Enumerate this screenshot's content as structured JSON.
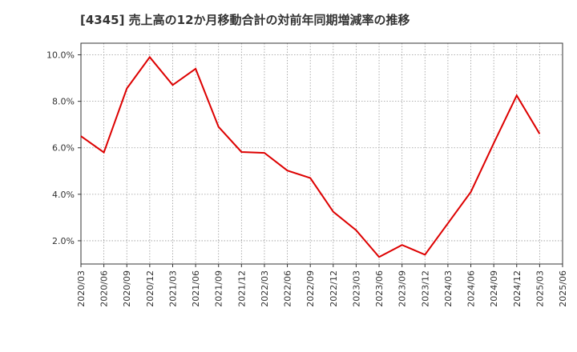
{
  "chart_data": {
    "type": "line",
    "title": "[4345]  売上高の12か月移動合計の対前年同期増減率の推移",
    "xlabel": "",
    "ylabel": "",
    "x": [
      "2020/03",
      "2020/06",
      "2020/09",
      "2020/12",
      "2021/03",
      "2021/06",
      "2021/09",
      "2021/12",
      "2022/03",
      "2022/06",
      "2022/09",
      "2022/12",
      "2023/03",
      "2023/06",
      "2023/09",
      "2023/12",
      "2024/03",
      "2024/06",
      "2024/09",
      "2024/12",
      "2025/03",
      "2025/06"
    ],
    "y_tick_values": [
      2.0,
      4.0,
      6.0,
      8.0,
      10.0
    ],
    "y_tick_labels": [
      "2.0%",
      "4.0%",
      "6.0%",
      "8.0%",
      "10.0%"
    ],
    "ylim": [
      1.0,
      10.5
    ],
    "grid": true,
    "series": [
      {
        "name": "対前年同期増減率",
        "color": "#dd0000",
        "values": [
          6.5,
          5.8,
          8.55,
          9.9,
          8.7,
          9.4,
          6.9,
          5.82,
          5.78,
          5.02,
          4.7,
          3.25,
          2.45,
          1.3,
          1.82,
          1.4,
          2.75,
          4.1,
          6.2,
          8.25,
          6.6,
          null
        ]
      }
    ]
  }
}
